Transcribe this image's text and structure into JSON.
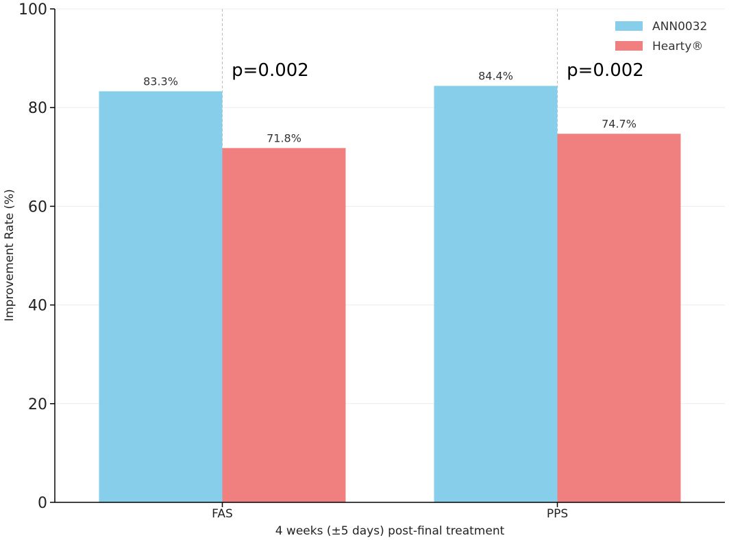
{
  "chart_data": {
    "type": "bar",
    "categories": [
      "FAS",
      "PPS"
    ],
    "series": [
      {
        "name": "ANN0032",
        "values": [
          83.3,
          84.4
        ],
        "labels": [
          "83.3%",
          "84.4%"
        ],
        "color": "#87CEEB"
      },
      {
        "name": "Hearty®",
        "values": [
          71.8,
          74.7
        ],
        "labels": [
          "71.8%",
          "74.7%"
        ],
        "color": "#F08080"
      }
    ],
    "annotations": [
      "p=0.002",
      "p=0.002"
    ],
    "title": "",
    "xlabel": "4 weeks (±5 days) post-final treatment",
    "ylabel": "Improvement Rate (%)",
    "ylim": [
      0,
      100
    ],
    "yticks": [
      "0",
      "20",
      "40",
      "60",
      "80",
      "100"
    ],
    "grid": true,
    "legend": "top-right"
  }
}
